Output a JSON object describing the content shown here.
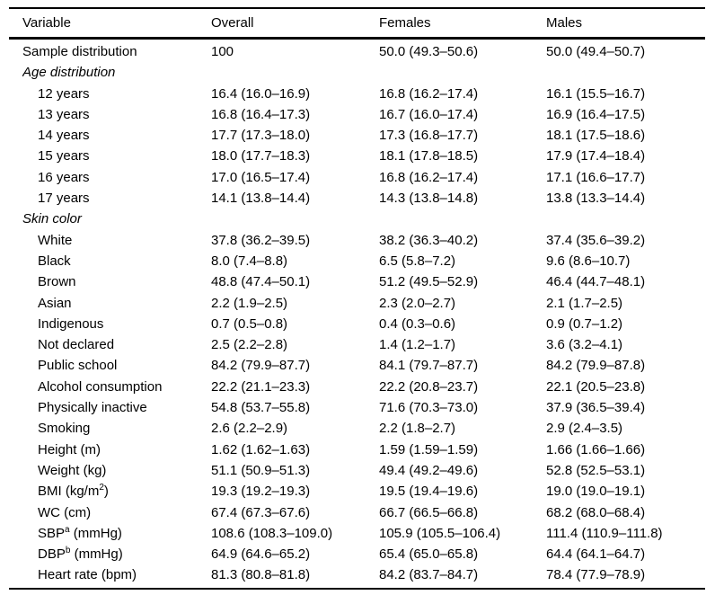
{
  "table": {
    "columns": [
      "Variable",
      "Overall",
      "Females",
      "Males"
    ],
    "value_format_note": "percent or mean (95% CI)",
    "rows": [
      {
        "variable": "Sample distribution",
        "indent": false,
        "italic": false,
        "overall": "100",
        "females": "50.0 (49.3–50.6)",
        "males": "50.0 (49.4–50.7)"
      },
      {
        "variable": "Age distribution",
        "indent": false,
        "italic": true,
        "overall": "",
        "females": "",
        "males": ""
      },
      {
        "variable": "12 years",
        "indent": true,
        "italic": false,
        "overall": "16.4 (16.0–16.9)",
        "females": "16.8 (16.2–17.4)",
        "males": "16.1 (15.5–16.7)"
      },
      {
        "variable": "13 years",
        "indent": true,
        "italic": false,
        "overall": "16.8 (16.4–17.3)",
        "females": "16.7 (16.0–17.4)",
        "males": "16.9 (16.4–17.5)"
      },
      {
        "variable": "14 years",
        "indent": true,
        "italic": false,
        "overall": "17.7 (17.3–18.0)",
        "females": "17.3 (16.8–17.7)",
        "males": "18.1 (17.5–18.6)"
      },
      {
        "variable": "15 years",
        "indent": true,
        "italic": false,
        "overall": "18.0 (17.7–18.3)",
        "females": "18.1 (17.8–18.5)",
        "males": "17.9 (17.4–18.4)"
      },
      {
        "variable": "16 years",
        "indent": true,
        "italic": false,
        "overall": "17.0 (16.5–17.4)",
        "females": "16.8 (16.2–17.4)",
        "males": "17.1 (16.6–17.7)"
      },
      {
        "variable": "17 years",
        "indent": true,
        "italic": false,
        "overall": "14.1 (13.8–14.4)",
        "females": "14.3 (13.8–14.8)",
        "males": "13.8 (13.3–14.4)"
      },
      {
        "variable": "Skin color",
        "indent": false,
        "italic": true,
        "overall": "",
        "females": "",
        "males": ""
      },
      {
        "variable": "White",
        "indent": true,
        "italic": false,
        "overall": "37.8 (36.2–39.5)",
        "females": "38.2 (36.3–40.2)",
        "males": "37.4 (35.6–39.2)"
      },
      {
        "variable": "Black",
        "indent": true,
        "italic": false,
        "overall": "8.0 (7.4–8.8)",
        "females": "6.5 (5.8–7.2)",
        "males": "9.6 (8.6–10.7)"
      },
      {
        "variable": "Brown",
        "indent": true,
        "italic": false,
        "overall": "48.8 (47.4–50.1)",
        "females": "51.2 (49.5–52.9)",
        "males": "46.4 (44.7–48.1)"
      },
      {
        "variable": "Asian",
        "indent": true,
        "italic": false,
        "overall": "2.2 (1.9–2.5)",
        "females": "2.3 (2.0–2.7)",
        "males": "2.1 (1.7–2.5)"
      },
      {
        "variable": "Indigenous",
        "indent": true,
        "italic": false,
        "overall": "0.7 (0.5–0.8)",
        "females": "0.4 (0.3–0.6)",
        "males": "0.9 (0.7–1.2)"
      },
      {
        "variable": "Not declared",
        "indent": true,
        "italic": false,
        "overall": "2.5 (2.2–2.8)",
        "females": "1.4 (1.2–1.7)",
        "males": "3.6 (3.2–4.1)"
      },
      {
        "variable": "Public school",
        "indent": true,
        "italic": false,
        "overall": "84.2 (79.9–87.7)",
        "females": "84.1 (79.7–87.7)",
        "males": "84.2 (79.9–87.8)"
      },
      {
        "variable": "Alcohol consumption",
        "indent": true,
        "italic": false,
        "overall": "22.2 (21.1–23.3)",
        "females": "22.2 (20.8–23.7)",
        "males": "22.1 (20.5–23.8)"
      },
      {
        "variable": "Physically inactive",
        "indent": true,
        "italic": false,
        "overall": "54.8 (53.7–55.8)",
        "females": "71.6 (70.3–73.0)",
        "males": "37.9 (36.5–39.4)"
      },
      {
        "variable": "Smoking",
        "indent": true,
        "italic": false,
        "overall": "2.6 (2.2–2.9)",
        "females": "2.2 (1.8–2.7)",
        "males": "2.9 (2.4–3.5)"
      },
      {
        "variable": "Height (m)",
        "indent": true,
        "italic": false,
        "overall": "1.62 (1.62–1.63)",
        "females": "1.59 (1.59–1.59)",
        "males": "1.66 (1.66–1.66)"
      },
      {
        "variable": "Weight (kg)",
        "indent": true,
        "italic": false,
        "overall": "51.1 (50.9–51.3)",
        "females": "49.4 (49.2–49.6)",
        "males": "52.8 (52.5–53.1)"
      },
      {
        "variable": "BMI (kg/m",
        "sup": "2",
        "rest": ")",
        "indent": true,
        "italic": false,
        "overall": "19.3 (19.2–19.3)",
        "females": "19.5 (19.4–19.6)",
        "males": "19.0 (19.0–19.1)"
      },
      {
        "variable": "WC (cm)",
        "indent": true,
        "italic": false,
        "overall": "67.4 (67.3–67.6)",
        "females": "66.7 (66.5–66.8)",
        "males": "68.2 (68.0–68.4)"
      },
      {
        "variable": "SBP",
        "sup": "a",
        "rest": " (mmHg)",
        "indent": true,
        "italic": false,
        "overall": "108.6 (108.3–109.0)",
        "females": "105.9 (105.5–106.4)",
        "males": "111.4 (110.9–111.8)"
      },
      {
        "variable": "DBP",
        "sup": "b",
        "rest": " (mmHg)",
        "indent": true,
        "italic": false,
        "overall": "64.9 (64.6–65.2)",
        "females": "65.4 (65.0–65.8)",
        "males": "64.4 (64.1–64.7)"
      },
      {
        "variable": "Heart rate (bpm)",
        "indent": true,
        "italic": false,
        "overall": "81.3 (80.8–81.8)",
        "females": "84.2 (83.7–84.7)",
        "males": "78.4 (77.9–78.9)"
      }
    ]
  }
}
